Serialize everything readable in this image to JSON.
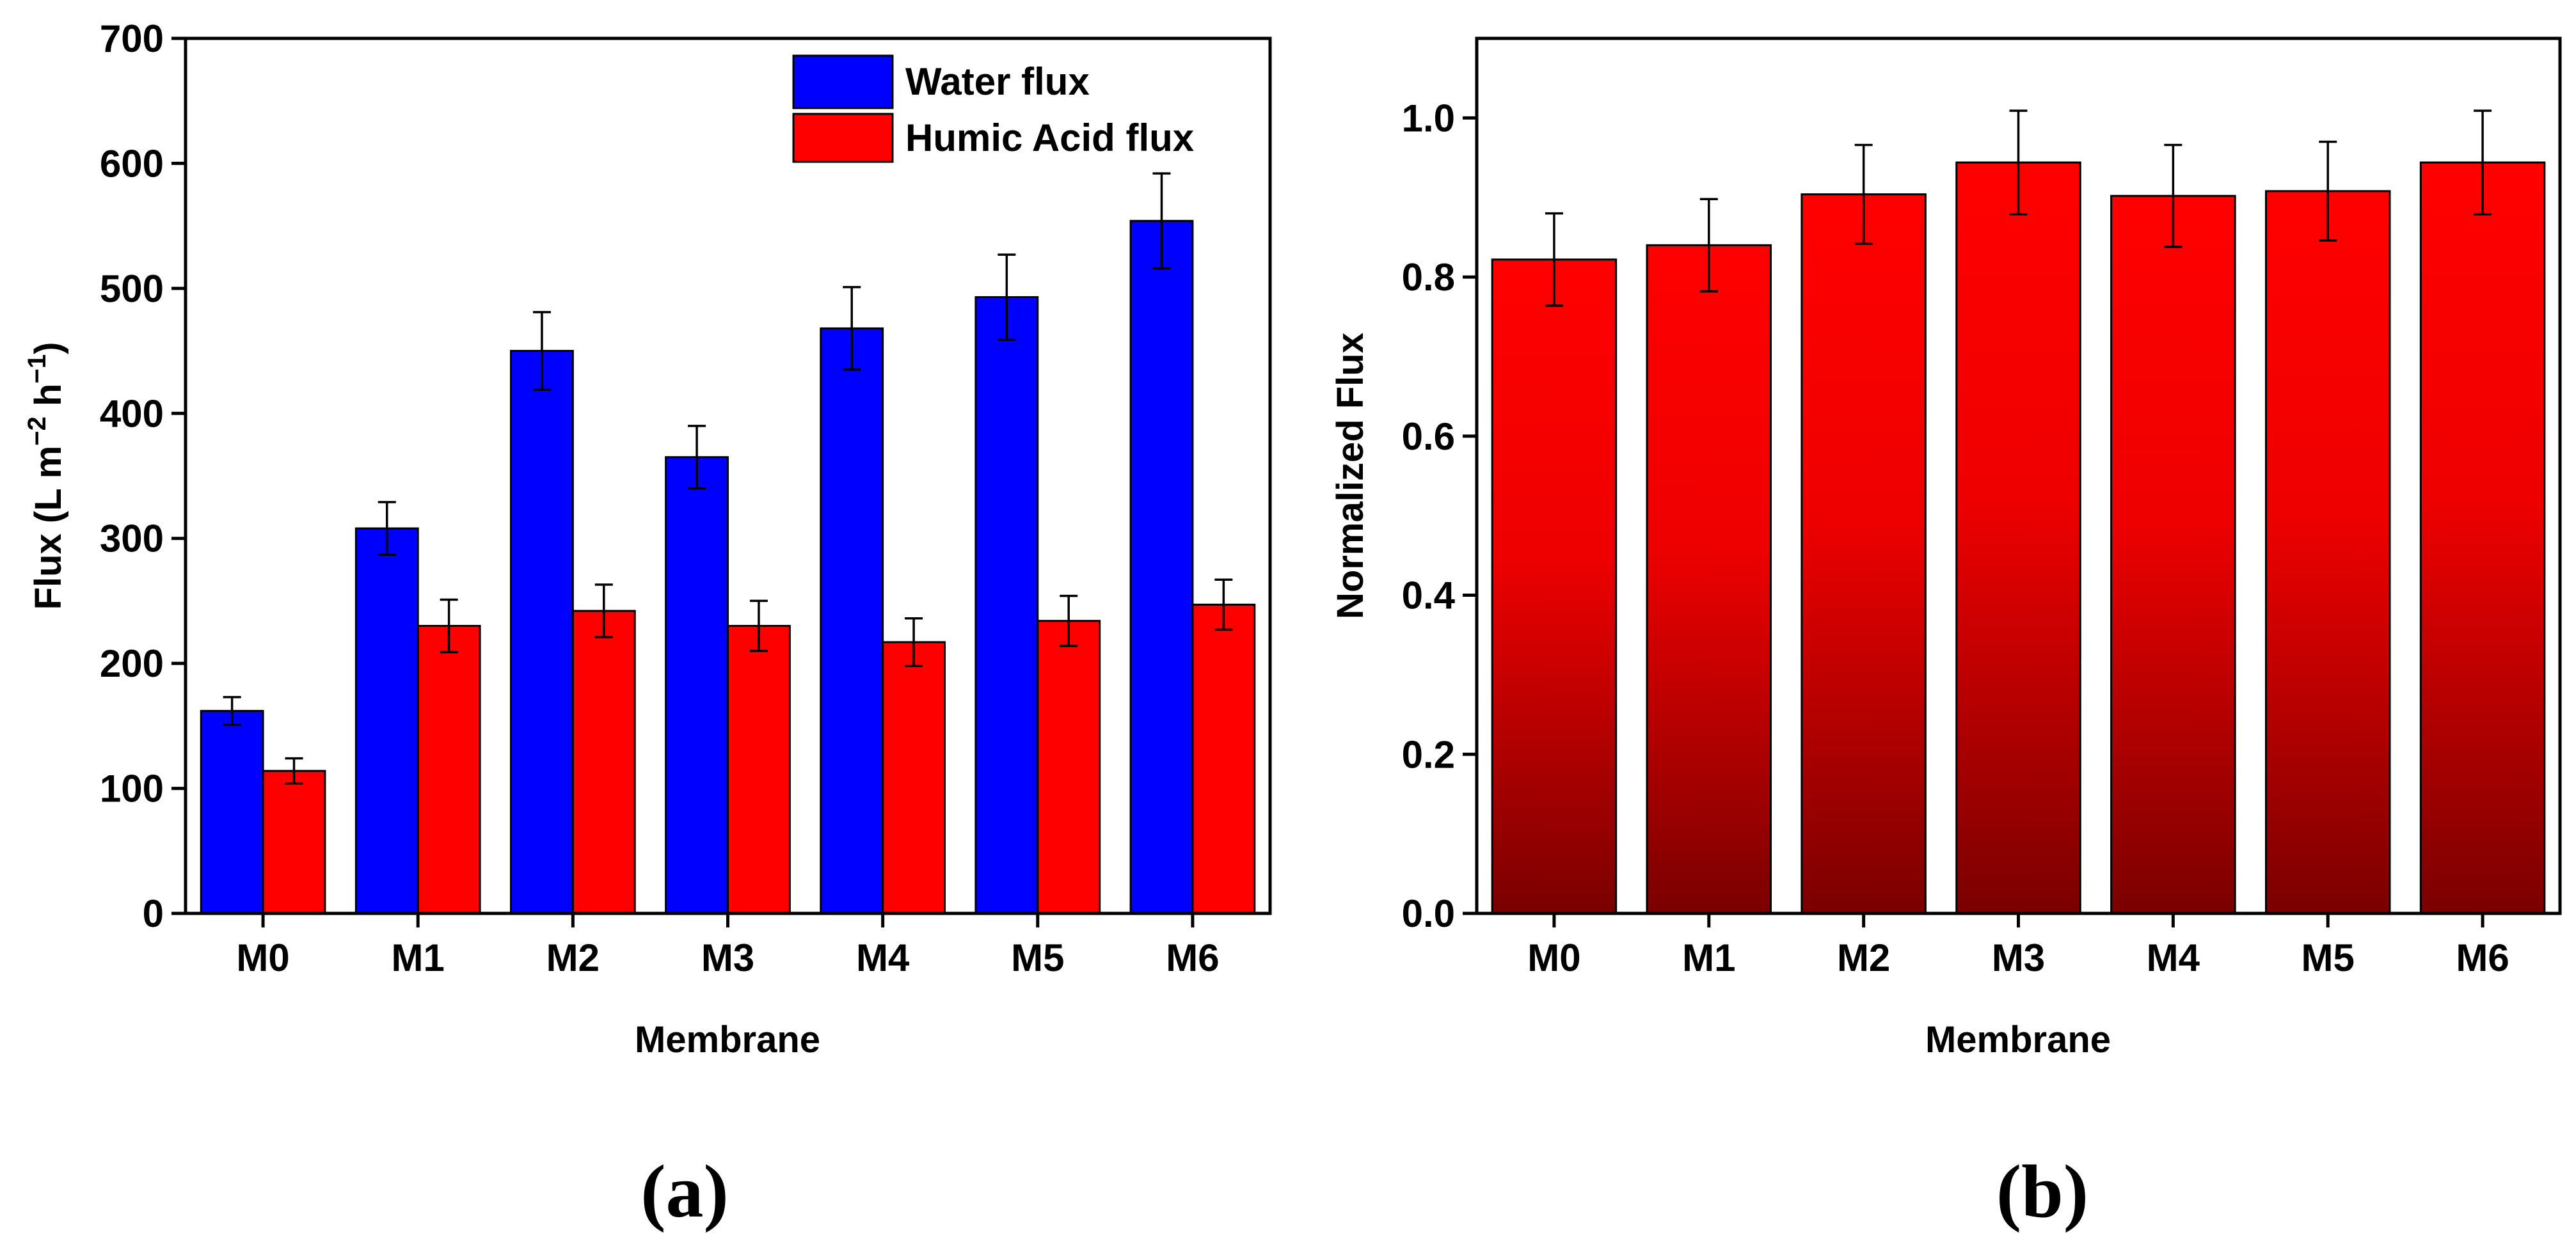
{
  "chart_data": [
    {
      "id": "a",
      "type": "bar",
      "panel_label": "(a)",
      "xlabel": "Membrane",
      "ylabel": "Flux (L m⁻² h⁻¹)",
      "ylabel_parts": {
        "base": "Flux (L m",
        "sup1": "−2",
        "mid": " h",
        "sup2": "−1",
        "end": ")"
      },
      "ylim": [
        0,
        700
      ],
      "yticks": [
        0,
        100,
        200,
        300,
        400,
        500,
        600,
        700
      ],
      "categories": [
        "M0",
        "M1",
        "M2",
        "M3",
        "M4",
        "M5",
        "M6"
      ],
      "series": [
        {
          "name": "Water flux",
          "color": "#0000ff",
          "values": [
            162,
            308,
            450,
            365,
            468,
            493,
            554
          ],
          "errors": [
            11,
            21,
            31,
            25,
            33,
            34,
            38
          ]
        },
        {
          "name": "Humic Acid flux",
          "color": "#ff0000",
          "values": [
            114,
            230,
            242,
            230,
            217,
            234,
            247
          ],
          "errors": [
            10,
            21,
            21,
            20,
            19,
            20,
            20
          ]
        }
      ],
      "legend_position": "top-right"
    },
    {
      "id": "b",
      "type": "bar",
      "panel_label": "(b)",
      "xlabel": "Membrane",
      "ylabel": "Normalized Flux",
      "ylim": [
        0,
        1.1
      ],
      "yticks": [
        0.0,
        0.2,
        0.4,
        0.6,
        0.8,
        1.0
      ],
      "ytick_labels": [
        "0.0",
        "0.2",
        "0.4",
        "0.6",
        "0.8",
        "1.0"
      ],
      "categories": [
        "M0",
        "M1",
        "M2",
        "M3",
        "M4",
        "M5",
        "M6"
      ],
      "series": [
        {
          "name": "Normalized Flux",
          "color_top": "#ff0000",
          "color_bottom": "#7a0000",
          "values": [
            0.822,
            0.84,
            0.904,
            0.944,
            0.902,
            0.908,
            0.944
          ],
          "errors": [
            0.058,
            0.058,
            0.062,
            0.065,
            0.064,
            0.062,
            0.065
          ]
        }
      ]
    }
  ]
}
